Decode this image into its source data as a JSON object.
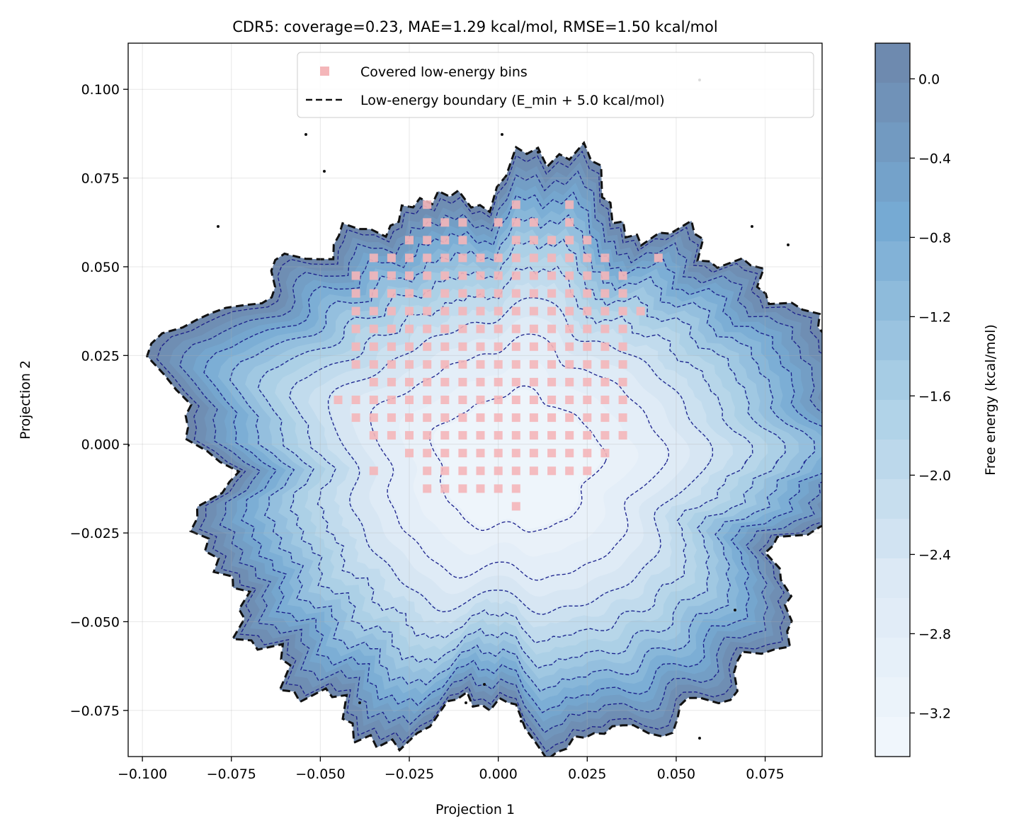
{
  "chart_data": {
    "type": "heatmap",
    "subtype": "filled-contour free-energy landscape with scatter overlay",
    "title": "CDR5: coverage=0.23, MAE=1.29 kcal/mol, RMSE=1.50 kcal/mol",
    "xlabel": "Projection 1",
    "ylabel": "Projection 2",
    "xlim": [
      -0.104,
      0.091
    ],
    "ylim": [
      -0.088,
      0.113
    ],
    "x_ticks": [
      -0.1,
      -0.075,
      -0.05,
      -0.025,
      0.0,
      0.025,
      0.05,
      0.075
    ],
    "x_tick_labels": [
      "−0.100",
      "−0.075",
      "−0.050",
      "−0.025",
      "0.000",
      "0.025",
      "0.050",
      "0.075"
    ],
    "y_ticks": [
      0.1,
      0.075,
      0.05,
      0.025,
      0.0,
      -0.025,
      -0.05,
      -0.075
    ],
    "y_tick_labels": [
      "0.100",
      "0.075",
      "0.050",
      "0.025",
      "0.000",
      "−0.025",
      "−0.050",
      "−0.075"
    ],
    "grid": true,
    "legend": {
      "placement": "upper center",
      "entries": [
        {
          "label": "Covered low-energy bins",
          "marker": "square",
          "color": "#f4b6b9"
        },
        {
          "label": "Low-energy boundary (E_min + 5.0 kcal/mol)",
          "linestyle": "dashed",
          "color": "#111111"
        }
      ]
    },
    "colorbar": {
      "label": "Free energy (kcal/mol)",
      "range": [
        -3.42,
        0.18
      ],
      "ticks": [
        0.0,
        -0.4,
        -0.8,
        -1.2,
        -1.6,
        -2.0,
        -2.4,
        -2.8,
        -3.2
      ],
      "tick_labels": [
        "0.0",
        "−0.4",
        "−0.8",
        "−1.2",
        "−1.6",
        "−2.0",
        "−2.4",
        "−2.8",
        "−3.2"
      ],
      "colormap": "Blues_r",
      "color_min": "#f3f8fd",
      "color_max": "#6d86aa"
    },
    "landscape": {
      "minimum_center": [
        0.005,
        -0.005
      ],
      "min_energy": -3.42,
      "max_energy": 0.18,
      "contour_line_levels": [
        -3.2,
        -2.8,
        -2.4,
        -2.0,
        -1.6,
        -1.2,
        -0.8,
        -0.4,
        0.0
      ]
    },
    "covered_bins": {
      "bin_size": 0.005,
      "rows": [
        {
          "y": 0.0675,
          "x": [
            -0.02,
            0.005,
            0.02
          ]
        },
        {
          "y": 0.0625,
          "x": [
            -0.02,
            -0.015,
            -0.01,
            0.0,
            0.005,
            0.01,
            0.02
          ]
        },
        {
          "y": 0.0575,
          "x": [
            -0.025,
            -0.02,
            -0.015,
            -0.01,
            0.005,
            0.01,
            0.015,
            0.02,
            0.025
          ]
        },
        {
          "y": 0.0525,
          "x": [
            -0.035,
            -0.03,
            -0.025,
            -0.02,
            -0.015,
            -0.01,
            -0.005,
            0.0,
            0.005,
            0.01,
            0.015,
            0.02,
            0.025,
            0.03,
            0.045
          ]
        },
        {
          "y": 0.0475,
          "x": [
            -0.04,
            -0.035,
            -0.03,
            -0.025,
            -0.02,
            -0.015,
            -0.01,
            -0.005,
            0.0,
            0.005,
            0.01,
            0.015,
            0.02,
            0.025,
            0.03,
            0.035
          ]
        },
        {
          "y": 0.0425,
          "x": [
            -0.04,
            -0.035,
            -0.03,
            -0.025,
            -0.02,
            -0.015,
            -0.01,
            -0.005,
            0.0,
            0.005,
            0.01,
            0.015,
            0.02,
            0.025,
            0.03,
            0.035
          ]
        },
        {
          "y": 0.0375,
          "x": [
            -0.04,
            -0.035,
            -0.03,
            -0.025,
            -0.02,
            -0.015,
            -0.01,
            -0.005,
            0.0,
            0.005,
            0.01,
            0.015,
            0.02,
            0.025,
            0.03,
            0.035,
            0.04
          ]
        },
        {
          "y": 0.0325,
          "x": [
            -0.04,
            -0.035,
            -0.03,
            -0.025,
            -0.02,
            -0.015,
            -0.01,
            -0.005,
            0.0,
            0.005,
            0.01,
            0.015,
            0.02,
            0.025,
            0.03,
            0.035
          ]
        },
        {
          "y": 0.0275,
          "x": [
            -0.04,
            -0.035,
            -0.03,
            -0.025,
            -0.02,
            -0.015,
            -0.01,
            -0.005,
            0.0,
            0.005,
            0.01,
            0.015,
            0.02,
            0.025,
            0.03,
            0.035
          ]
        },
        {
          "y": 0.0225,
          "x": [
            -0.04,
            -0.035,
            -0.03,
            -0.025,
            -0.02,
            -0.015,
            -0.01,
            -0.005,
            0.0,
            0.005,
            0.01,
            0.015,
            0.02,
            0.025,
            0.03,
            0.035
          ]
        },
        {
          "y": 0.0175,
          "x": [
            -0.035,
            -0.03,
            -0.025,
            -0.02,
            -0.015,
            -0.01,
            -0.005,
            0.0,
            0.005,
            0.01,
            0.015,
            0.02,
            0.025,
            0.03,
            0.035
          ]
        },
        {
          "y": 0.0125,
          "x": [
            -0.045,
            -0.04,
            -0.035,
            -0.03,
            -0.025,
            -0.02,
            -0.015,
            -0.01,
            -0.005,
            0.0,
            0.005,
            0.01,
            0.015,
            0.02,
            0.025,
            0.03,
            0.035
          ]
        },
        {
          "y": 0.0075,
          "x": [
            -0.04,
            -0.035,
            -0.03,
            -0.025,
            -0.02,
            -0.015,
            -0.01,
            -0.005,
            0.0,
            0.005,
            0.01,
            0.015,
            0.02,
            0.025,
            0.03,
            0.035
          ]
        },
        {
          "y": 0.0025,
          "x": [
            -0.035,
            -0.03,
            -0.025,
            -0.02,
            -0.015,
            -0.01,
            -0.005,
            0.0,
            0.005,
            0.01,
            0.015,
            0.02,
            0.025,
            0.03,
            0.035
          ]
        },
        {
          "y": -0.0025,
          "x": [
            -0.025,
            -0.02,
            -0.015,
            -0.01,
            -0.005,
            0.0,
            0.005,
            0.01,
            0.015,
            0.02,
            0.025,
            0.03
          ]
        },
        {
          "y": -0.0075,
          "x": [
            -0.035,
            -0.02,
            -0.015,
            -0.01,
            -0.005,
            0.0,
            0.005,
            0.01,
            0.015,
            0.02,
            0.025
          ]
        },
        {
          "y": -0.0125,
          "x": [
            -0.02,
            -0.015,
            -0.01,
            -0.005,
            0.0,
            0.005
          ]
        },
        {
          "y": -0.0175,
          "x": [
            0.005
          ]
        }
      ]
    }
  }
}
